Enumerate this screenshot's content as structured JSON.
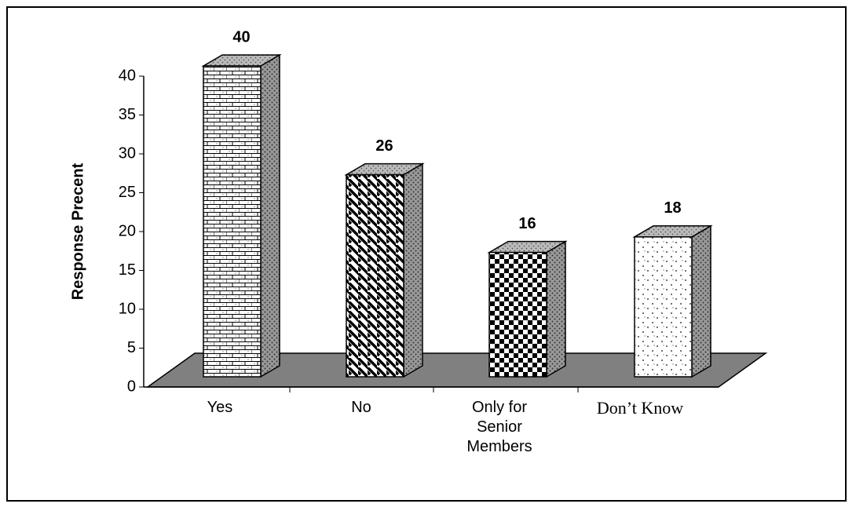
{
  "chart_data": {
    "type": "bar",
    "y_label": "Response Precent",
    "categories": [
      "Yes",
      "No",
      "Only for Senior Members",
      "Don’t Know"
    ],
    "values": [
      40,
      26,
      16,
      18
    ],
    "ylim": [
      0,
      40
    ],
    "yticks": [
      0,
      5,
      10,
      15,
      20,
      25,
      30,
      35,
      40
    ]
  }
}
